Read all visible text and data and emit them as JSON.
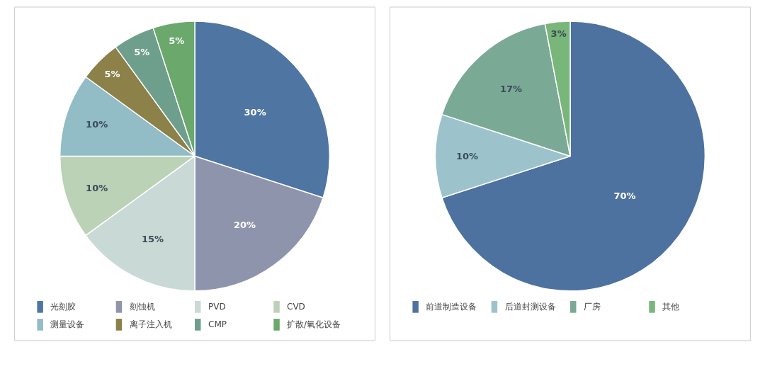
{
  "chart_data": [
    {
      "type": "pie",
      "categories": [
        "光刻胶",
        "刻蚀机",
        "PVD",
        "CVD",
        "测量设备",
        "离子注入机",
        "CMP",
        "扩散/氧化设备"
      ],
      "values": [
        30,
        20,
        15,
        10,
        10,
        5,
        5,
        5
      ],
      "colors": [
        "#4f75a3",
        "#8f94ad",
        "#c9d9d6",
        "#bcd2b6",
        "#92bcc6",
        "#8b8149",
        "#6e9f8c",
        "#6aa86c"
      ],
      "value_labels": [
        "30%",
        "20%",
        "15%",
        "10%",
        "10%",
        "5%",
        "5%",
        "5%"
      ],
      "legend": "bottom"
    },
    {
      "type": "pie",
      "categories": [
        "前道制造设备",
        "后道封测设备",
        "厂房",
        "其他"
      ],
      "values": [
        70,
        10,
        17,
        3
      ],
      "colors": [
        "#4d72a0",
        "#9cc3cb",
        "#7aa996",
        "#78b679"
      ],
      "value_labels": [
        "70%",
        "10%",
        "17%",
        "3%"
      ],
      "legend": "bottom"
    }
  ]
}
